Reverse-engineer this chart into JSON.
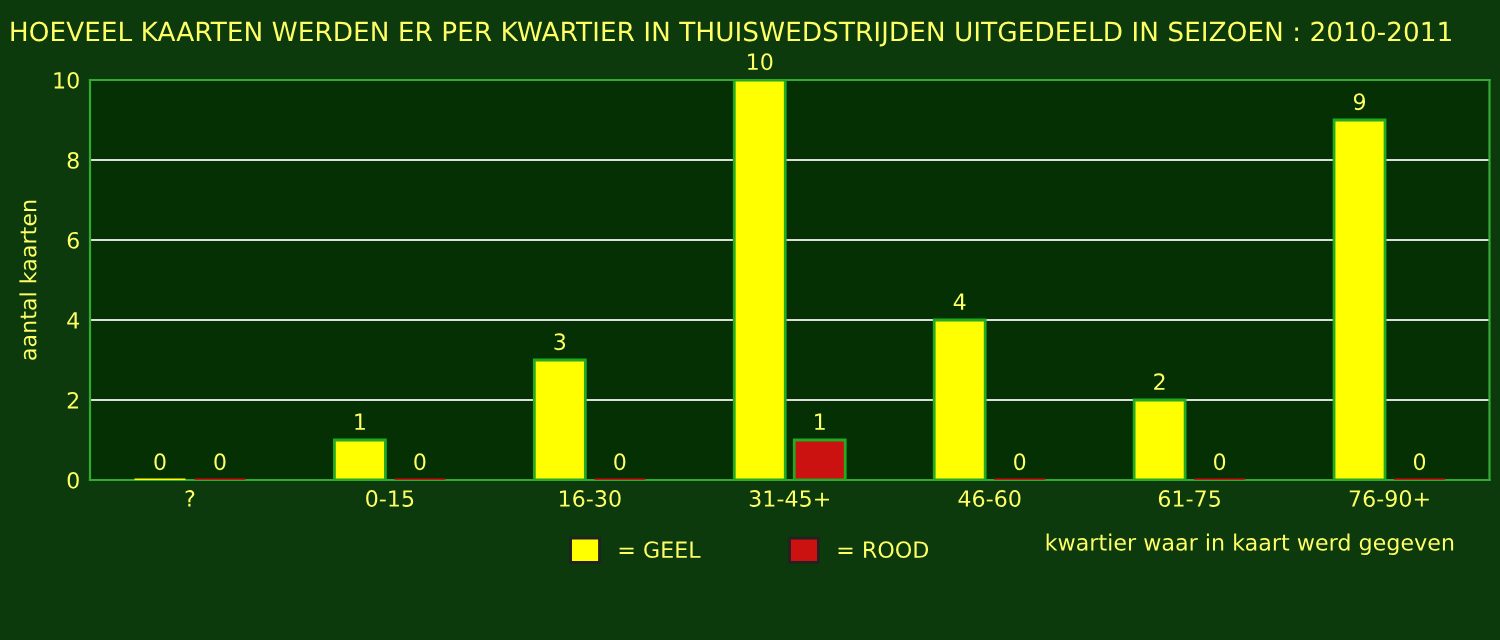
{
  "chart_data": {
    "type": "bar",
    "title": "HOEVEEL KAARTEN WERDEN ER PER KWARTIER IN THUISWEDSTRIJDEN UITGEDEELD IN SEIZOEN : 2010-2011",
    "categories": [
      "?",
      "0-15",
      "16-30",
      "31-45+",
      "46-60",
      "61-75",
      "76-90+"
    ],
    "series": [
      {
        "name": "= GEEL",
        "color": "#ffff00",
        "values": [
          0,
          1,
          3,
          10,
          4,
          2,
          9
        ]
      },
      {
        "name": "= ROOD",
        "color": "#cc1111",
        "values": [
          0,
          0,
          0,
          1,
          0,
          0,
          0
        ]
      }
    ],
    "xlabel": "kwartier waar in kaart werd gegeven",
    "ylabel": "aantal kaarten",
    "ylim": [
      0,
      10
    ],
    "yticks": [
      0,
      2,
      4,
      6,
      8,
      10
    ],
    "grid": "y",
    "legend": "bottom",
    "data_labels": true
  }
}
